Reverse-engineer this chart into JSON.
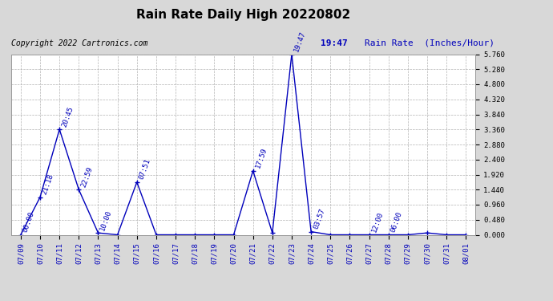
{
  "title": "Rain Rate Daily High 20220802",
  "copyright": "Copyright 2022 Cartronics.com",
  "legend_time": "19:47",
  "legend_label": "Rain Rate  (Inches/Hour)",
  "line_color": "#0000BB",
  "background_color": "#D8D8D8",
  "plot_bg_color": "#FFFFFF",
  "grid_color": "#AAAAAA",
  "dates": [
    "07/09",
    "07/10",
    "07/11",
    "07/12",
    "07/13",
    "07/14",
    "07/15",
    "07/16",
    "07/17",
    "07/18",
    "07/19",
    "07/20",
    "07/21",
    "07/22",
    "07/23",
    "07/24",
    "07/25",
    "07/26",
    "07/27",
    "07/28",
    "07/29",
    "07/30",
    "07/31",
    "08/01"
  ],
  "values": [
    0.0,
    1.2,
    3.36,
    1.44,
    0.06,
    0.0,
    1.68,
    0.0,
    0.0,
    0.0,
    0.0,
    0.0,
    2.04,
    0.06,
    5.76,
    0.1,
    0.0,
    0.0,
    0.0,
    0.0,
    0.0,
    0.06,
    0.0,
    0.0
  ],
  "time_labels": [
    "00:00",
    "21:18",
    "20:45",
    "22:59",
    "10:00",
    "00:00",
    "07:51",
    "00:00",
    "00:00",
    "00:00",
    "00:00",
    "00:00",
    "17:59",
    "00:00",
    "19:47",
    "03:57",
    "00:00",
    "00:00",
    "12:00",
    "06:00",
    "00:00",
    "00:00",
    "00:00",
    "00:00"
  ],
  "show_time_labels": [
    true,
    true,
    true,
    true,
    true,
    false,
    true,
    false,
    false,
    false,
    false,
    false,
    true,
    false,
    true,
    true,
    false,
    false,
    true,
    true,
    false,
    false,
    false,
    false
  ],
  "ylim": [
    0.0,
    5.76
  ],
  "yticks": [
    0.0,
    0.48,
    0.96,
    1.44,
    1.92,
    2.4,
    2.88,
    3.36,
    3.84,
    4.32,
    4.8,
    5.28,
    5.76
  ]
}
